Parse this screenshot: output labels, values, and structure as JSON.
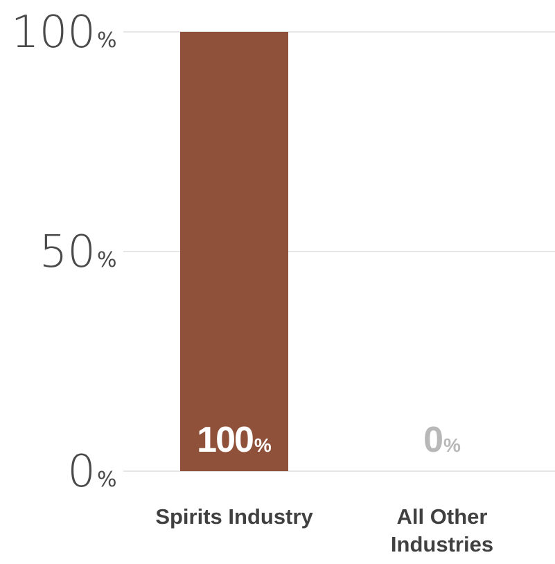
{
  "chart_data": {
    "type": "bar",
    "categories": [
      "Spirits Industry",
      "All Other Industries"
    ],
    "category_lines": [
      [
        "Spirits Industry"
      ],
      [
        "All Other",
        "Industries"
      ]
    ],
    "values": [
      100,
      0
    ],
    "value_labels": [
      "100",
      "0"
    ],
    "value_suffix": "%",
    "ylim": [
      0,
      100
    ],
    "y_ticks": [
      0,
      50,
      100
    ],
    "y_tick_labels": [
      "0",
      "50",
      "100"
    ],
    "y_tick_suffix": "%",
    "grid": true,
    "title": "",
    "xlabel": "",
    "ylabel": ""
  },
  "colors": {
    "bar": "#8f513a",
    "gridline": "#cccccc",
    "value_label_on_bar": "#ffffff",
    "value_label_off_bar": "#b8b8b8",
    "category_text": "#404040",
    "tick_text": "#4a4a4a"
  }
}
